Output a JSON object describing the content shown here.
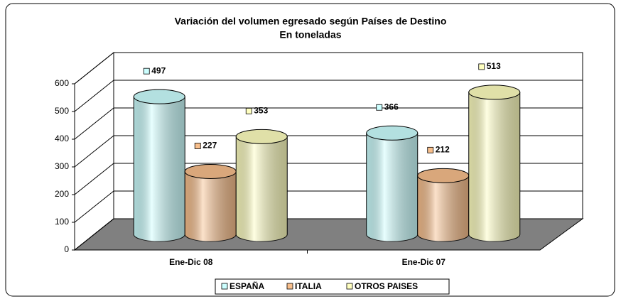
{
  "chart_data": {
    "type": "bar3d-cylinder",
    "title": "Variación del volumen egresado según Países de Destino",
    "subtitle": "En toneladas",
    "categories": [
      "Ene-Dic 08",
      "Ene-Dic 07"
    ],
    "series": [
      {
        "name": "ESPAÑA",
        "color": "#ccffff",
        "values": [
          497,
          366
        ]
      },
      {
        "name": "ITALIA",
        "color": "#f8bf8c",
        "values": [
          227,
          212
        ]
      },
      {
        "name": "OTROS PAISES",
        "color": "#ffffc0",
        "values": [
          353,
          513
        ]
      }
    ],
    "ylim": [
      0,
      600
    ],
    "yticks": [
      0,
      100,
      200,
      300,
      400,
      500,
      600
    ],
    "grid": true,
    "legend": "bottom"
  }
}
